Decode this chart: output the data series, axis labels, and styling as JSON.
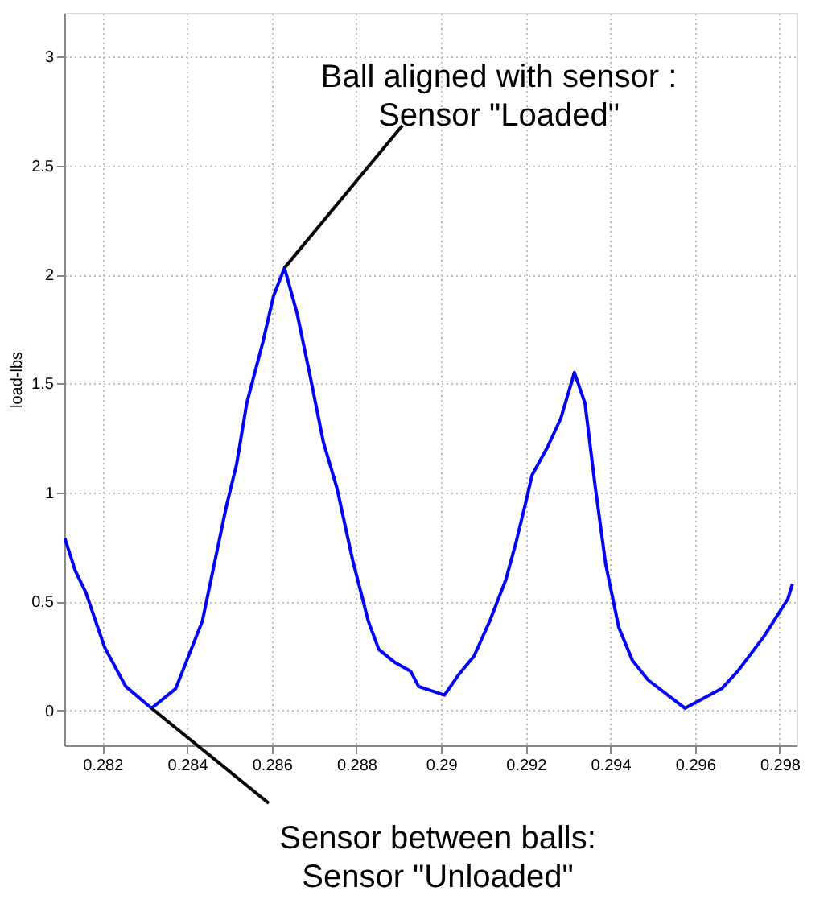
{
  "chart_data": {
    "type": "line",
    "ylabel": "load-lbs",
    "xlim": [
      0.2811,
      0.2984
    ],
    "xticks": [
      0.282,
      0.284,
      0.286,
      0.288,
      0.29,
      0.292,
      0.294,
      0.296,
      0.298
    ],
    "ylim": [
      -0.16,
      3.2
    ],
    "yticks": [
      0,
      0.5,
      1,
      1.5,
      2,
      2.5,
      3
    ],
    "grid": true,
    "line_style": "solid",
    "marker": "none",
    "x": [
      0.28111,
      0.28136,
      0.28161,
      0.28205,
      0.28255,
      0.28316,
      0.28373,
      0.28436,
      0.28492,
      0.28517,
      0.28541,
      0.28579,
      0.28604,
      0.2863,
      0.2866,
      0.2869,
      0.28722,
      0.28754,
      0.28791,
      0.28828,
      0.28853,
      0.28891,
      0.28928,
      0.28947,
      0.29008,
      0.2904,
      0.29078,
      0.29115,
      0.29153,
      0.29177,
      0.29202,
      0.29215,
      0.29252,
      0.29283,
      0.29315,
      0.2934,
      0.29364,
      0.29389,
      0.2942,
      0.29452,
      0.29489,
      0.29576,
      0.29663,
      0.29701,
      0.29763,
      0.29819,
      0.2983
    ],
    "series": [
      {
        "color": "#0000ff",
        "values": [
          0.79,
          0.64,
          0.54,
          0.29,
          0.11,
          0.01,
          0.1,
          0.41,
          0.93,
          1.13,
          1.41,
          1.69,
          1.9,
          2.03,
          1.82,
          1.54,
          1.23,
          1.02,
          0.69,
          0.41,
          0.28,
          0.22,
          0.18,
          0.11,
          0.07,
          0.16,
          0.25,
          0.41,
          0.6,
          0.77,
          0.97,
          1.08,
          1.21,
          1.34,
          1.55,
          1.41,
          1.03,
          0.67,
          0.38,
          0.23,
          0.14,
          0.01,
          0.1,
          0.18,
          0.34,
          0.51,
          0.58
        ]
      }
    ],
    "annotations": [
      {
        "text": "Ball aligned with sensor :\nSensor \"Loaded\"",
        "x": 0.2863,
        "y": 2.03
      },
      {
        "text": "Sensor between balls:\nSensor \"Unloaded\"",
        "x": 0.28316,
        "y": 0.01
      }
    ]
  }
}
